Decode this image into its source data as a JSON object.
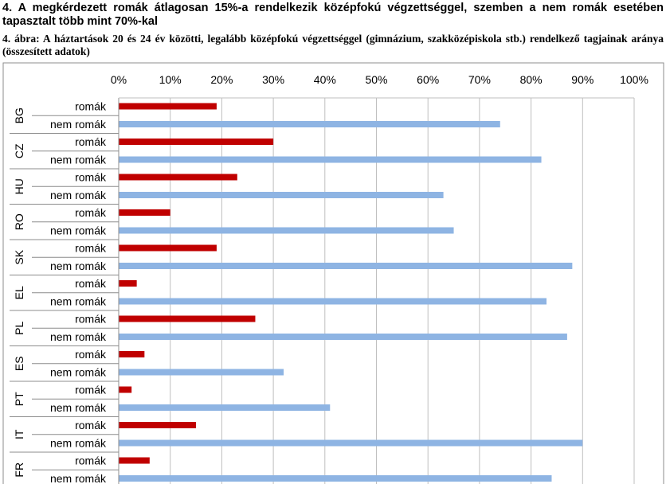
{
  "header": {
    "heading": "4. A megkérdezett romák átlagosan 15%-a rendelkezik középfokú végzettséggel, szemben a nem romák esetében tapasztalt több mint 70%-kal",
    "caption": "4. ábra: A háztartások 20 és 24 év közötti, legalább középfokú végzettséggel (gimnázium, szakközépiskola stb.) rendelkező tagjainak aránya (összesített adatok)"
  },
  "chart_data": {
    "type": "bar",
    "orientation": "horizontal",
    "title": "",
    "xlabel": "",
    "ylabel": "",
    "xlim": [
      0,
      100
    ],
    "x_ticks": [
      "0%",
      "10%",
      "20%",
      "30%",
      "40%",
      "50%",
      "60%",
      "70%",
      "80%",
      "90%",
      "100%"
    ],
    "tick_position": "top",
    "grid": true,
    "categories": [
      "BG",
      "CZ",
      "HU",
      "RO",
      "SK",
      "EL",
      "PL",
      "ES",
      "PT",
      "IT",
      "FR"
    ],
    "series": [
      {
        "name": "romák",
        "color": "#c00000",
        "values": [
          19,
          30,
          23,
          10,
          19,
          3.5,
          26.5,
          5,
          2.5,
          15,
          6
        ]
      },
      {
        "name": "nem romák",
        "color": "#8eb4e3",
        "values": [
          74,
          82,
          63,
          65,
          88,
          83,
          87,
          32,
          41,
          90,
          84
        ]
      }
    ]
  }
}
